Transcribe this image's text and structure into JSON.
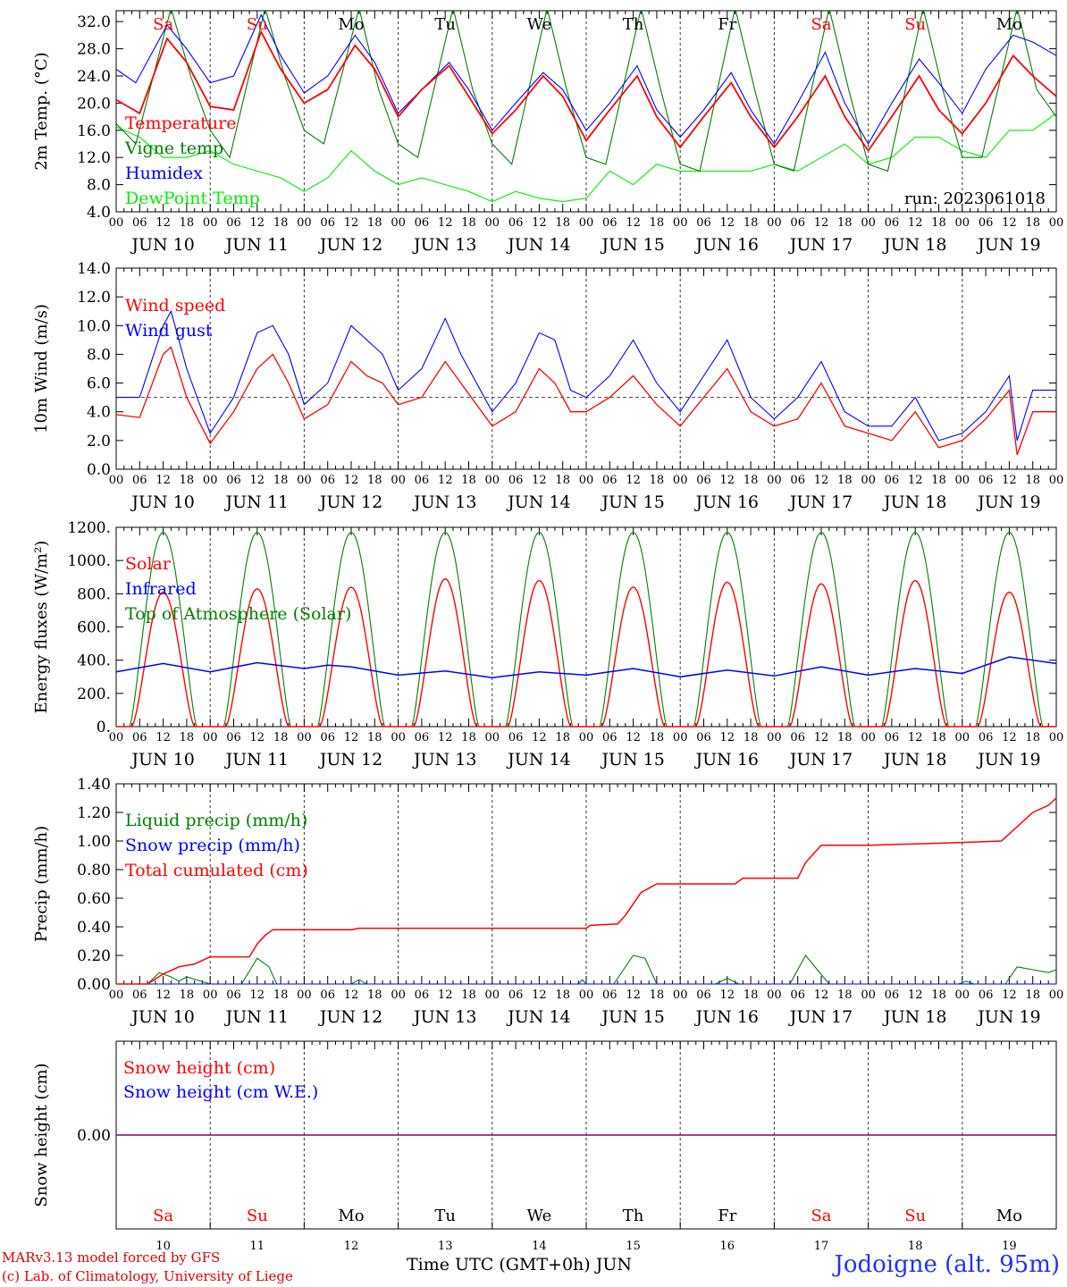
{
  "station": "Jodoigne (alt. 95m)",
  "credit": [
    "MARv3.13 model forced by GFS",
    "(c) Lab. of Climatology, University of Liege"
  ],
  "x_axis_title": "Time UTC (GMT+0h)",
  "month": "JUN",
  "colors": {
    "red": "#ff0000",
    "green": "#008000",
    "blue": "#0000ff",
    "lightgreen": "#00ee00",
    "purple": "#800080",
    "weekend": "#ff0000",
    "weekday": "#000000"
  },
  "days": [
    {
      "abbr": "Sa",
      "num": "10",
      "date_label": "JUN 10",
      "weekend": true
    },
    {
      "abbr": "Su",
      "num": "11",
      "date_label": "JUN 11",
      "weekend": true
    },
    {
      "abbr": "Mo",
      "num": "12",
      "date_label": "JUN 12",
      "weekend": false
    },
    {
      "abbr": "Tu",
      "num": "13",
      "date_label": "JUN 13",
      "weekend": false
    },
    {
      "abbr": "We",
      "num": "14",
      "date_label": "JUN 14",
      "weekend": false
    },
    {
      "abbr": "Th",
      "num": "15",
      "date_label": "JUN 15",
      "weekend": false
    },
    {
      "abbr": "Fr",
      "num": "16",
      "date_label": "JUN 16",
      "weekend": false
    },
    {
      "abbr": "Sa",
      "num": "17",
      "date_label": "JUN 17",
      "weekend": true
    },
    {
      "abbr": "Su",
      "num": "18",
      "date_label": "JUN 18",
      "weekend": true
    },
    {
      "abbr": "Mo",
      "num": "19",
      "date_label": "JUN 19",
      "weekend": false
    }
  ],
  "hour_ticks": [
    "00",
    "06",
    "12",
    "18"
  ],
  "final_hour_tick": "00",
  "chart_data": [
    {
      "type": "line",
      "ylabel": "2m Temp. (°C)",
      "ylim": [
        4,
        33.6
      ],
      "yticks": [
        "4.0",
        "8.0",
        "12.0",
        "16.0",
        "20.0",
        "24.0",
        "28.0",
        "32.0"
      ],
      "annotation": "run: 2023061018",
      "x_unit": "hours since JUN 10 00 UTC",
      "series": [
        {
          "name": "Temperature",
          "color": "red",
          "x": [
            0,
            6,
            13,
            18,
            24,
            30,
            37,
            42,
            48,
            54,
            61,
            66,
            72,
            78,
            85,
            90,
            96,
            102,
            109,
            114,
            120,
            126,
            133,
            138,
            144,
            150,
            157,
            162,
            168,
            174,
            181,
            186,
            192,
            198,
            205,
            210,
            216,
            222,
            229,
            234,
            240
          ],
          "values": [
            20.5,
            18.5,
            29.5,
            26,
            19.5,
            19,
            30.5,
            25,
            20,
            22,
            28.5,
            25,
            18,
            22,
            25.5,
            21,
            15.5,
            19,
            24,
            21,
            14.5,
            19,
            24,
            18,
            13.5,
            18,
            23,
            18,
            13.5,
            18,
            24,
            18,
            13,
            18,
            24,
            19,
            15.5,
            20,
            27,
            24,
            21
          ]
        },
        {
          "name": "Vigne temp",
          "color": "green",
          "x": [
            0,
            5,
            14,
            19,
            24,
            29,
            38,
            43,
            48,
            53,
            62,
            67,
            72,
            77,
            86,
            91,
            96,
            101,
            110,
            115,
            120,
            125,
            134,
            139,
            144,
            149,
            158,
            163,
            168,
            173,
            182,
            187,
            192,
            197,
            206,
            211,
            216,
            221,
            230,
            235,
            240
          ],
          "values": [
            17,
            14,
            34,
            24,
            16,
            12,
            34,
            24,
            16,
            14,
            34,
            22,
            14,
            12,
            34,
            22,
            14,
            11,
            34,
            22,
            12,
            11,
            34,
            22,
            11,
            10,
            34,
            22,
            11,
            10,
            34,
            22,
            11,
            10,
            34,
            22,
            12,
            12,
            34,
            22,
            18
          ]
        },
        {
          "name": "Humidex",
          "color": "blue",
          "x": [
            0,
            5,
            13,
            18,
            24,
            30,
            37,
            42,
            48,
            54,
            61,
            66,
            72,
            78,
            85,
            90,
            96,
            102,
            109,
            114,
            120,
            126,
            133,
            138,
            144,
            150,
            157,
            162,
            168,
            174,
            181,
            186,
            192,
            198,
            205,
            210,
            216,
            222,
            229,
            234,
            240
          ],
          "values": [
            25,
            23,
            31.5,
            28,
            23,
            24,
            33,
            27,
            21.5,
            24,
            30,
            26,
            18.5,
            22,
            26,
            22,
            16,
            20,
            24.5,
            22,
            16,
            20,
            25.5,
            19,
            15,
            19,
            24.5,
            19,
            14,
            20,
            27.5,
            20,
            14,
            20,
            26.5,
            23,
            18.5,
            25,
            30,
            29,
            27
          ]
        },
        {
          "name": "DewPoint Temp",
          "color": "lightgreen",
          "x": [
            0,
            6,
            12,
            18,
            24,
            30,
            36,
            42,
            48,
            54,
            60,
            66,
            72,
            78,
            84,
            90,
            96,
            102,
            108,
            114,
            120,
            126,
            132,
            138,
            144,
            150,
            156,
            162,
            168,
            174,
            180,
            186,
            192,
            198,
            204,
            210,
            216,
            222,
            228,
            234,
            240
          ],
          "values": [
            16.5,
            15,
            12,
            12,
            13,
            11,
            10,
            9,
            7,
            9,
            13,
            10,
            8,
            9,
            8,
            7,
            5.5,
            7,
            6,
            5.5,
            6,
            10,
            8,
            11,
            10,
            10,
            10,
            10,
            11,
            10,
            12,
            14,
            11,
            12,
            15,
            15,
            13,
            12,
            16,
            16,
            18.5
          ]
        }
      ]
    },
    {
      "type": "line",
      "ylabel": "10m Wind (m/s)",
      "ylim": [
        0,
        14
      ],
      "yticks": [
        "0.0",
        "2.0",
        "4.0",
        "6.0",
        "8.0",
        "10.0",
        "12.0",
        "14.0"
      ],
      "reference_line": 5,
      "x_unit": "hours since JUN 10 00 UTC",
      "series": [
        {
          "name": "Wind speed",
          "color": "red",
          "x": [
            0,
            6,
            12,
            14,
            18,
            24,
            30,
            36,
            40,
            44,
            48,
            54,
            60,
            64,
            68,
            72,
            78,
            84,
            88,
            92,
            96,
            102,
            108,
            112,
            116,
            120,
            126,
            132,
            138,
            144,
            150,
            156,
            162,
            168,
            174,
            180,
            186,
            192,
            198,
            204,
            210,
            216,
            222,
            228,
            230,
            234,
            240
          ],
          "values": [
            3.8,
            3.6,
            8,
            8.5,
            5,
            1.8,
            4,
            7,
            8,
            6,
            3.5,
            4.5,
            7.5,
            6.5,
            6,
            4.5,
            5,
            7.5,
            6,
            4.5,
            3,
            4,
            7,
            6,
            4,
            4,
            5,
            6.5,
            4.5,
            3,
            5,
            7,
            4,
            3,
            3.5,
            6,
            3,
            2.5,
            2,
            4,
            1.5,
            2,
            3.5,
            5.5,
            1,
            4,
            4
          ]
        },
        {
          "name": "Wind gust",
          "color": "blue",
          "x": [
            0,
            6,
            12,
            14,
            18,
            24,
            30,
            36,
            40,
            44,
            48,
            54,
            60,
            64,
            68,
            72,
            78,
            84,
            88,
            92,
            96,
            102,
            108,
            112,
            116,
            120,
            126,
            132,
            138,
            144,
            150,
            156,
            162,
            168,
            174,
            180,
            186,
            192,
            198,
            204,
            210,
            216,
            222,
            228,
            230,
            234,
            240
          ],
          "values": [
            5,
            5,
            10,
            11,
            7,
            2.5,
            5,
            9.5,
            10,
            8,
            4.5,
            6,
            10,
            9,
            8,
            5.5,
            7,
            10.5,
            8,
            6,
            4,
            6,
            9.5,
            9,
            5.5,
            5,
            6.5,
            9,
            6,
            4,
            6.5,
            9,
            5,
            3.5,
            5,
            7.5,
            4,
            3,
            3,
            5,
            2,
            2.5,
            4,
            6.5,
            2,
            5.5,
            5.5
          ]
        }
      ]
    },
    {
      "type": "line",
      "ylabel": "Energy fluxes (W/m²)",
      "ylim": [
        0,
        1200
      ],
      "yticks": [
        "0.",
        "200.",
        "400.",
        "600.",
        "800.",
        "1000.",
        "1200."
      ],
      "x_unit": "hours since JUN 10 00 UTC",
      "series": [
        {
          "name": "Solar",
          "color": "red",
          "peaks": [
            810,
            830,
            840,
            890,
            880,
            840,
            870,
            860,
            880,
            810
          ],
          "sunrise_hour": 4,
          "sunset_hour": 20
        },
        {
          "name": "Infrared",
          "color": "blue",
          "x": [
            0,
            12,
            24,
            36,
            48,
            54,
            60,
            72,
            84,
            96,
            108,
            120,
            132,
            144,
            156,
            168,
            180,
            192,
            204,
            216,
            228,
            240
          ],
          "values": [
            330,
            380,
            330,
            385,
            350,
            370,
            360,
            310,
            335,
            295,
            330,
            310,
            350,
            300,
            340,
            305,
            360,
            310,
            350,
            320,
            420,
            380
          ]
        },
        {
          "name": "Top of Atmosphere (Solar)",
          "color": "green",
          "peak": 1170,
          "sunrise_hour": 3.5,
          "sunset_hour": 20.5
        }
      ]
    },
    {
      "type": "line",
      "ylabel": "Precip (mm/h)",
      "ylim": [
        0,
        1.4
      ],
      "yticks": [
        "0.00",
        "0.20",
        "0.40",
        "0.60",
        "0.80",
        "1.00",
        "1.20",
        "1.40"
      ],
      "x_unit": "hours since JUN 10 00 UTC",
      "series": [
        {
          "name": "Liquid precip (mm/h)",
          "color": "green",
          "x": [
            0,
            8,
            11,
            14,
            16,
            18,
            24,
            32,
            36,
            39,
            41,
            48,
            60,
            62,
            64,
            72,
            118,
            119,
            120,
            127,
            132,
            135,
            138,
            144,
            153,
            156,
            159,
            162,
            172,
            176,
            179,
            182,
            186,
            198,
            215,
            217,
            219,
            227,
            230,
            234,
            238,
            240
          ],
          "values": [
            0,
            0,
            0.08,
            0.05,
            0.02,
            0.05,
            0,
            0,
            0.18,
            0.12,
            0,
            0,
            0,
            0.03,
            0,
            0,
            0,
            0.03,
            0,
            0,
            0.2,
            0.18,
            0,
            0,
            0,
            0.04,
            0,
            0,
            0,
            0.2,
            0.1,
            0,
            0,
            0,
            0,
            0.02,
            0,
            0,
            0.12,
            0.1,
            0.08,
            0.1
          ]
        },
        {
          "name": "Snow precip (mm/h)",
          "color": "blue",
          "x": [
            0,
            240
          ],
          "values": [
            0,
            0
          ]
        },
        {
          "name": "Total cumulated (cm)",
          "color": "red",
          "x": [
            0,
            8,
            12,
            16,
            20,
            24,
            34,
            36,
            38,
            40,
            48,
            60,
            62,
            96,
            120,
            121,
            128,
            130,
            134,
            138,
            144,
            158,
            160,
            162,
            174,
            176,
            180,
            184,
            192,
            216,
            226,
            230,
            234,
            238,
            240
          ],
          "values": [
            0,
            0,
            0.07,
            0.12,
            0.14,
            0.19,
            0.19,
            0.28,
            0.34,
            0.38,
            0.38,
            0.38,
            0.39,
            0.39,
            0.39,
            0.41,
            0.42,
            0.48,
            0.64,
            0.7,
            0.7,
            0.7,
            0.74,
            0.74,
            0.74,
            0.85,
            0.97,
            0.97,
            0.97,
            0.99,
            1.0,
            1.1,
            1.2,
            1.25,
            1.3
          ]
        }
      ]
    },
    {
      "type": "line",
      "ylabel": "Snow height (cm)",
      "yticks": [
        "0.00"
      ],
      "x_unit": "hours since JUN 10 00 UTC",
      "series": [
        {
          "name": "Snow height (cm)",
          "color": "red",
          "x": [
            0,
            240
          ],
          "values": [
            0,
            0
          ]
        },
        {
          "name": "Snow height (cm W.E.)",
          "color": "blue",
          "x": [
            0,
            240
          ],
          "values": [
            0,
            0
          ]
        }
      ]
    }
  ]
}
